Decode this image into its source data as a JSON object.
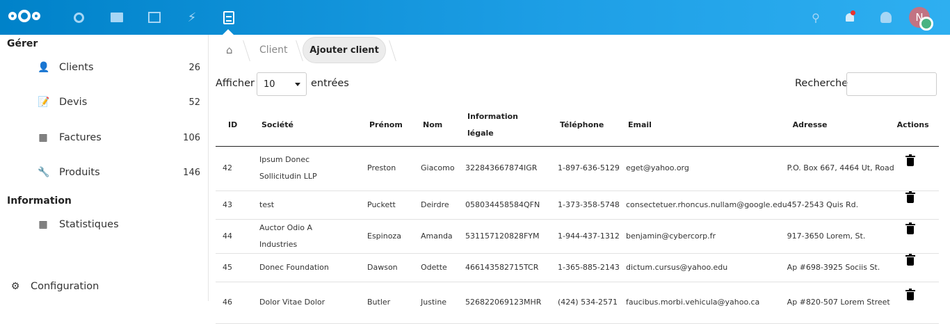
{
  "header": {
    "apps": [
      "dashboard",
      "files",
      "photos",
      "activity",
      "crm"
    ],
    "active_app": "crm",
    "avatar_letter": "N",
    "colors": {
      "bar": "#0082c9",
      "avatar": "#c27383",
      "status": "#49b382",
      "notification": "#e9322d"
    }
  },
  "sidebar": {
    "section1": "Gérer",
    "items": [
      {
        "label": "Clients",
        "count": "26",
        "icon": "clients-icon"
      },
      {
        "label": "Devis",
        "count": "52",
        "icon": "quote-icon"
      },
      {
        "label": "Factures",
        "count": "106",
        "icon": "grid-icon"
      },
      {
        "label": "Produits",
        "count": "146",
        "icon": "wrench-icon"
      }
    ],
    "section2": "Information",
    "items2": [
      {
        "label": "Statistiques",
        "icon": "grid-icon"
      }
    ],
    "settings": "Configuration"
  },
  "breadcrumb": {
    "level1": "Client",
    "current": "Ajouter client"
  },
  "controls": {
    "show": "Afficher",
    "entries_value": "10",
    "entries": "entrées",
    "search": "Recherche",
    "search_value": ""
  },
  "table": {
    "headers": [
      "ID",
      "Société",
      "Prénom",
      "Nom",
      "Information légale",
      "Téléphone",
      "Email",
      "Adresse",
      "Actions"
    ],
    "rows": [
      [
        "42",
        "Ipsum Donec Sollicitudin LLP",
        "Preston",
        "Giacomo",
        "322843667874IGR",
        "1-897-636-5129",
        "eget@yahoo.org",
        "P.O. Box 667, 4464 Ut, Road"
      ],
      [
        "43",
        "test",
        "Puckett",
        "Deirdre",
        "058034458584QFN",
        "1-373-358-5748",
        "consectetuer.rhoncus.nullam@google.edu",
        "457-2543 Quis Rd."
      ],
      [
        "44",
        "Auctor Odio A Industries",
        "Espinoza",
        "Amanda",
        "531157120828FYM",
        "1-944-437-1312",
        "benjamin@cybercorp.fr",
        "917-3650 Lorem, St."
      ],
      [
        "45",
        "Donec Foundation",
        "Dawson",
        "Odette",
        "466143582715TCR",
        "1-365-885-2143",
        "dictum.cursus@yahoo.edu",
        "Ap #698-3925 Sociis St."
      ],
      [
        "46",
        "Dolor Vitae Dolor",
        "Butler",
        "Justine",
        "526822069123MHR",
        "(424) 534-2571",
        "faucibus.morbi.vehicula@yahoo.ca",
        "Ap #820-507 Lorem Street"
      ]
    ]
  }
}
